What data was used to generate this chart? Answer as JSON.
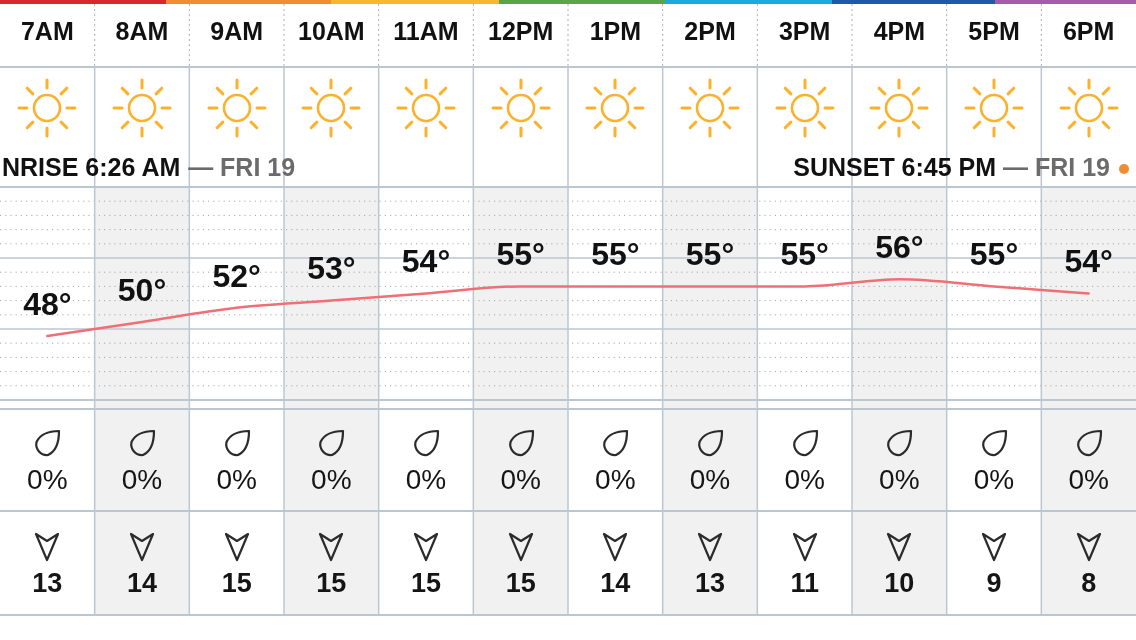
{
  "chart_data": [
    {
      "type": "line",
      "categories": [
        "7AM",
        "8AM",
        "9AM",
        "10AM",
        "11AM",
        "12PM",
        "1PM",
        "2PM",
        "3PM",
        "4PM",
        "5PM",
        "6PM"
      ],
      "color": "#ef6f77",
      "values": [
        48,
        50,
        52,
        53,
        54,
        55,
        55,
        55,
        55,
        56,
        55,
        54
      ],
      "value_labels": [
        "48°",
        "50°",
        "52°",
        "53°",
        "54°",
        "55°",
        "55°",
        "55°",
        "55°",
        "56°",
        "55°",
        "54°"
      ],
      "ylim": [
        39,
        69
      ],
      "yticks": [
        {
          "value": 39,
          "label": null
        },
        {
          "value": 41,
          "label": null
        },
        {
          "value": 43,
          "label": null
        },
        {
          "value": 45,
          "label": null
        },
        {
          "value": 47,
          "label": null
        },
        {
          "value": 49,
          "label": null
        },
        {
          "value": 51,
          "label": null
        },
        {
          "value": 53,
          "label": null
        },
        {
          "value": 55,
          "label": null
        },
        {
          "value": 57,
          "label": null
        },
        {
          "value": 59,
          "label": null
        },
        {
          "value": 61,
          "label": null
        },
        {
          "value": 63,
          "label": null
        },
        {
          "value": 65,
          "label": null
        },
        {
          "value": 67,
          "label": null
        },
        {
          "value": 69,
          "label": null
        }
      ],
      "grid": true,
      "marker": "none",
      "tick_labels": "x",
      "annotations": [
        "NRISE 6:26 AM",
        "— FRI 19",
        "SUNSET 6:45 PM",
        "— FRI 19"
      ]
    },
    {
      "type": "other",
      "values": [
        0,
        0,
        0,
        0,
        0,
        0,
        0,
        0,
        0,
        0,
        0,
        0
      ],
      "value_labels": [
        "0%",
        "0%",
        "0%",
        "0%",
        "0%",
        "0%",
        "0%",
        "0%",
        "0%",
        "0%",
        "0%",
        "0%"
      ]
    },
    {
      "type": "other",
      "values": [
        13,
        14,
        15,
        15,
        15,
        15,
        14,
        13,
        11,
        10,
        9,
        8
      ],
      "value_labels": [
        "13",
        "14",
        "15",
        "15",
        "15",
        "15",
        "14",
        "13",
        "11",
        "10",
        "9",
        "8"
      ]
    }
  ]
}
